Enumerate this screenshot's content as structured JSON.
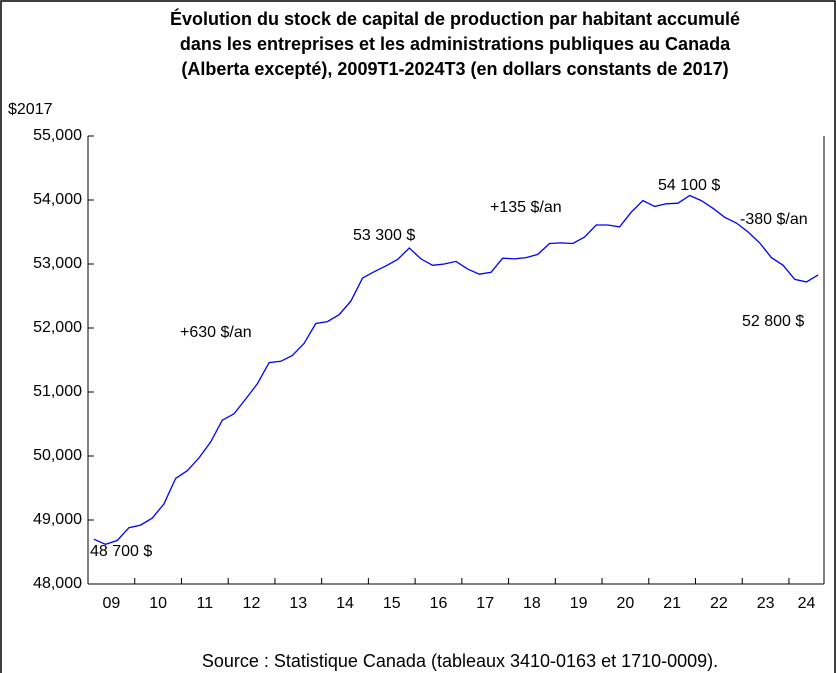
{
  "chart_data": {
    "type": "line",
    "title": [
      "Évolution du stock de capital de production par habitant accumulé",
      "dans les entreprises et les administrations publiques au Canada",
      "(Alberta excepté), 2009T1-2024T3 (en dollars constants de 2017)"
    ],
    "y_unit": "$2017",
    "source": "Source : Statistique Canada (tableaux 3410-0163 et 1710-0009).",
    "categories": [
      "2009T1",
      "2009T2",
      "2009T3",
      "2009T4",
      "2010T1",
      "2010T2",
      "2010T3",
      "2010T4",
      "2011T1",
      "2011T2",
      "2011T3",
      "2011T4",
      "2012T1",
      "2012T2",
      "2012T3",
      "2012T4",
      "2013T1",
      "2013T2",
      "2013T3",
      "2013T4",
      "2014T1",
      "2014T2",
      "2014T3",
      "2014T4",
      "2015T1",
      "2015T2",
      "2015T3",
      "2015T4",
      "2016T1",
      "2016T2",
      "2016T3",
      "2016T4",
      "2017T1",
      "2017T2",
      "2017T3",
      "2017T4",
      "2018T1",
      "2018T2",
      "2018T3",
      "2018T4",
      "2019T1",
      "2019T2",
      "2019T3",
      "2019T4",
      "2020T1",
      "2020T2",
      "2020T3",
      "2020T4",
      "2021T1",
      "2021T2",
      "2021T3",
      "2021T4",
      "2022T1",
      "2022T2",
      "2022T3",
      "2022T4",
      "2023T1",
      "2023T2",
      "2023T3",
      "2023T4",
      "2024T1",
      "2024T2",
      "2024T3"
    ],
    "series": [
      {
        "color": "#0000ff",
        "values": [
          48700,
          48620,
          48680,
          48880,
          48920,
          49030,
          49250,
          49650,
          49770,
          49970,
          50220,
          50560,
          50660,
          50890,
          51130,
          51460,
          51480,
          51570,
          51760,
          52070,
          52100,
          52210,
          52420,
          52780,
          52880,
          52970,
          53070,
          53250,
          53080,
          52980,
          53000,
          53040,
          52920,
          52840,
          52870,
          53090,
          53080,
          53100,
          53150,
          53320,
          53330,
          53320,
          53420,
          53610,
          53610,
          53580,
          53810,
          53990,
          53900,
          53940,
          53950,
          54070,
          53990,
          53870,
          53730,
          53640,
          53500,
          53330,
          53100,
          52980,
          52760,
          52720,
          52830
        ]
      }
    ],
    "xtick_labels": [
      "09",
      "10",
      "11",
      "12",
      "13",
      "14",
      "15",
      "16",
      "17",
      "18",
      "19",
      "20",
      "21",
      "22",
      "23",
      "24"
    ],
    "ylim": [
      48000,
      55000
    ],
    "yticks": [
      {
        "value": 48000,
        "label": "48,000"
      },
      {
        "value": 49000,
        "label": "49,000"
      },
      {
        "value": 50000,
        "label": "50,000"
      },
      {
        "value": 51000,
        "label": "51,000"
      },
      {
        "value": 52000,
        "label": "52,000"
      },
      {
        "value": 53000,
        "label": "53,000"
      },
      {
        "value": 54000,
        "label": "54,000"
      },
      {
        "value": 55000,
        "label": "55,000"
      }
    ],
    "annotations": [
      "48 700 $",
      "+630 $/an",
      "53 300 $",
      "+135 $/an",
      "54 100 $",
      "-380 $/an",
      "52 800 $"
    ]
  }
}
